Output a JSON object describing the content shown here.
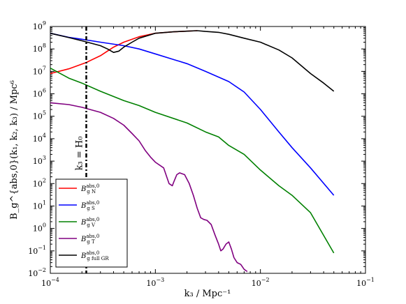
{
  "chart_data": {
    "type": "line",
    "title": "",
    "xlabel": "k₃ / Mpc⁻¹",
    "ylabel": "B_g^{abs,0}(k₁, k₂, k₃) / Mpc⁶",
    "xscale": "log",
    "yscale": "log",
    "xlim": [
      0.0001,
      0.1
    ],
    "ylim": [
      0.01,
      1000000000
    ],
    "x_ticks": [
      {
        "value": 0.0001,
        "base": "10",
        "exp": "−4"
      },
      {
        "value": 0.001,
        "base": "10",
        "exp": "−3"
      },
      {
        "value": 0.01,
        "base": "10",
        "exp": "−2"
      },
      {
        "value": 0.1,
        "base": "10",
        "exp": "−1"
      }
    ],
    "y_ticks": [
      {
        "value": 0.01,
        "base": "10",
        "exp": "−2"
      },
      {
        "value": 0.1,
        "base": "10",
        "exp": "−1"
      },
      {
        "value": 1,
        "base": "10",
        "exp": "0"
      },
      {
        "value": 10,
        "base": "10",
        "exp": "1"
      },
      {
        "value": 100,
        "base": "10",
        "exp": "2"
      },
      {
        "value": 1000,
        "base": "10",
        "exp": "3"
      },
      {
        "value": 10000,
        "base": "10",
        "exp": "4"
      },
      {
        "value": 100000,
        "base": "10",
        "exp": "5"
      },
      {
        "value": 1000000,
        "base": "10",
        "exp": "6"
      },
      {
        "value": 10000000,
        "base": "10",
        "exp": "7"
      },
      {
        "value": 100000000,
        "base": "10",
        "exp": "8"
      },
      {
        "value": 1000000000,
        "base": "10",
        "exp": "9"
      }
    ],
    "grid": false,
    "legend_position": "lower-left",
    "annotations": [
      {
        "text": "k₃ = H₀",
        "x": 0.00022,
        "style": "dash-dot vertical line"
      }
    ],
    "series": [
      {
        "name": "B_g N^{abs,0}",
        "legend_sub": "g N",
        "color": "#ff0000",
        "points": [
          [
            0.0001,
            8000000
          ],
          [
            0.00015,
            13000000
          ],
          [
            0.00022,
            25000000
          ],
          [
            0.0003,
            50000000
          ],
          [
            0.0004,
            120000000
          ],
          [
            0.0005,
            200000000
          ],
          [
            0.0007,
            350000000
          ],
          [
            0.001,
            500000000
          ],
          [
            0.0015,
            580000000
          ],
          [
            0.002,
            620000000
          ],
          [
            0.0025,
            650000000
          ]
        ]
      },
      {
        "name": "B_g S^{abs,0}",
        "legend_sub": "g S",
        "color": "#0000ff",
        "points": [
          [
            0.0001,
            500000000
          ],
          [
            0.00015,
            330000000
          ],
          [
            0.0002,
            270000000
          ],
          [
            0.0003,
            200000000
          ],
          [
            0.0005,
            140000000
          ],
          [
            0.0007,
            100000000
          ],
          [
            0.001,
            60000000
          ],
          [
            0.002,
            22000000
          ],
          [
            0.003,
            10000000
          ],
          [
            0.005,
            3500000
          ],
          [
            0.007,
            1200000
          ],
          [
            0.01,
            200000
          ],
          [
            0.015,
            20000
          ],
          [
            0.02,
            4000
          ],
          [
            0.03,
            500
          ],
          [
            0.05,
            30
          ]
        ]
      },
      {
        "name": "B_g V^{abs,0}",
        "legend_sub": "g V",
        "color": "#008000",
        "points": [
          [
            0.0001,
            14000000
          ],
          [
            0.00015,
            5000000
          ],
          [
            0.0002,
            3000000
          ],
          [
            0.0003,
            1300000
          ],
          [
            0.0005,
            500000
          ],
          [
            0.0007,
            300000
          ],
          [
            0.001,
            150000
          ],
          [
            0.002,
            50000
          ],
          [
            0.003,
            20000
          ],
          [
            0.004,
            12000
          ],
          [
            0.005,
            5000
          ],
          [
            0.007,
            2000
          ],
          [
            0.01,
            400
          ],
          [
            0.015,
            80
          ],
          [
            0.02,
            30
          ],
          [
            0.03,
            5
          ],
          [
            0.05,
            0.08
          ]
        ]
      },
      {
        "name": "B_g T^{abs,0}",
        "legend_sub": "g T",
        "color": "#800080",
        "points": [
          [
            0.0001,
            400000
          ],
          [
            0.00015,
            330000
          ],
          [
            0.0002,
            250000
          ],
          [
            0.0003,
            150000
          ],
          [
            0.0004,
            80000
          ],
          [
            0.0005,
            40000
          ],
          [
            0.0006,
            17000
          ],
          [
            0.0007,
            8000
          ],
          [
            0.0008,
            3000
          ],
          [
            0.0009,
            1500
          ],
          [
            0.001,
            900
          ],
          [
            0.0012,
            500
          ],
          [
            0.00135,
            100
          ],
          [
            0.00145,
            80
          ],
          [
            0.0015,
            120
          ],
          [
            0.0016,
            250
          ],
          [
            0.0017,
            300
          ],
          [
            0.0019,
            250
          ],
          [
            0.0021,
            100
          ],
          [
            0.0023,
            30
          ],
          [
            0.0025,
            8
          ],
          [
            0.0027,
            3
          ],
          [
            0.0029,
            2.5
          ],
          [
            0.0031,
            2.3
          ],
          [
            0.0034,
            1.5
          ],
          [
            0.0037,
            0.5
          ],
          [
            0.004,
            0.2
          ],
          [
            0.0042,
            0.1
          ],
          [
            0.0044,
            0.12
          ],
          [
            0.0047,
            0.2
          ],
          [
            0.005,
            0.25
          ],
          [
            0.0053,
            0.12
          ],
          [
            0.0056,
            0.05
          ],
          [
            0.006,
            0.03
          ],
          [
            0.0065,
            0.025
          ],
          [
            0.007,
            0.015
          ],
          [
            0.0075,
            0.012
          ]
        ]
      },
      {
        "name": "B_g full GR^{abs,0}",
        "legend_sub": "g full GR",
        "color": "#000000",
        "points": [
          [
            0.0001,
            500000000
          ],
          [
            0.00015,
            320000000
          ],
          [
            0.0002,
            230000000
          ],
          [
            0.0003,
            140000000
          ],
          [
            0.00035,
            100000000
          ],
          [
            0.0004,
            70000000
          ],
          [
            0.00045,
            80000000
          ],
          [
            0.0005,
            120000000
          ],
          [
            0.0006,
            200000000
          ],
          [
            0.0007,
            300000000
          ],
          [
            0.001,
            500000000
          ],
          [
            0.0015,
            580000000
          ],
          [
            0.002,
            620000000
          ],
          [
            0.0025,
            650000000
          ],
          [
            0.003,
            600000000
          ],
          [
            0.004,
            550000000
          ],
          [
            0.005,
            450000000
          ],
          [
            0.007,
            300000000
          ],
          [
            0.01,
            200000000
          ],
          [
            0.015,
            90000000
          ],
          [
            0.02,
            40000000
          ],
          [
            0.03,
            8000000
          ],
          [
            0.04,
            3000000
          ],
          [
            0.05,
            1300000
          ]
        ]
      }
    ]
  }
}
